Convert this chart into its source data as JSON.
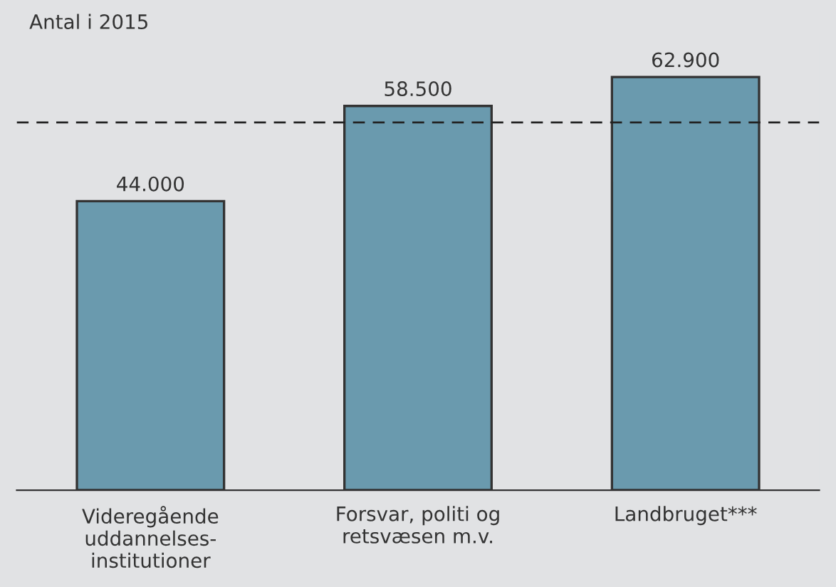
{
  "chart_data": {
    "type": "bar",
    "title": "Antal i 2015",
    "categories": [
      "Videregående\nuddannelses-\ninstitutioner",
      "Forsvar, politi og\nretsvæsen m.v.",
      "Landbruget***"
    ],
    "values": [
      44000,
      58500,
      62900
    ],
    "value_labels": [
      "44.000",
      "58.500",
      "62.900"
    ],
    "color": "#6a9aae",
    "ref_lines": [
      {
        "axis": "y",
        "value": 56000,
        "line_style": "dashed",
        "color": "#222222"
      }
    ],
    "grid": false,
    "legend": false
  }
}
